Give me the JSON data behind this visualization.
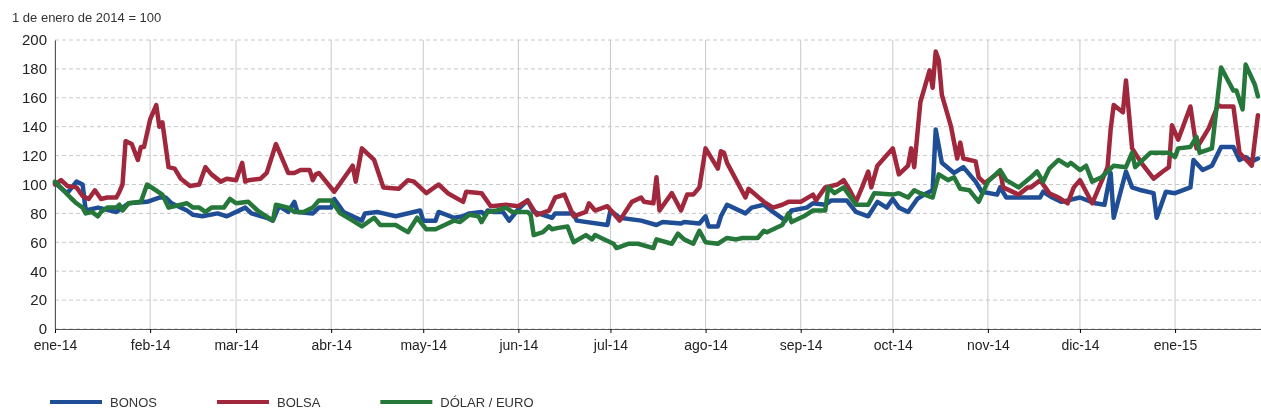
{
  "chart_data": {
    "type": "line",
    "ylabel": "1 de enero de 2014 = 100",
    "xlim": [
      "2014-01-01",
      "2015-01-29"
    ],
    "xticks": [
      {
        "value": "2014-01-01",
        "label": "ene-14"
      },
      {
        "value": "2014-02-01",
        "label": "feb-14"
      },
      {
        "value": "2014-03-01",
        "label": "mar-14"
      },
      {
        "value": "2014-04-01",
        "label": "abr-14"
      },
      {
        "value": "2014-05-01",
        "label": "may-14"
      },
      {
        "value": "2014-06-01",
        "label": "jun-14"
      },
      {
        "value": "2014-07-01",
        "label": "jul-14"
      },
      {
        "value": "2014-08-01",
        "label": "ago-14"
      },
      {
        "value": "2014-09-01",
        "label": "sep-14"
      },
      {
        "value": "2014-10-01",
        "label": "oct-14"
      },
      {
        "value": "2014-11-01",
        "label": "nov-14"
      },
      {
        "value": "2014-12-01",
        "label": "dic-14"
      },
      {
        "value": "2015-01-01",
        "label": "ene-15"
      }
    ],
    "ylim": [
      0,
      200
    ],
    "yticks": [
      0,
      20,
      40,
      60,
      80,
      100,
      120,
      140,
      160,
      180,
      200
    ],
    "grid": true,
    "legend": "bottom",
    "line_style": "solid",
    "series": [
      {
        "name": "BONOS",
        "color": "#1f4e96",
        "x": [
          "2014-01-01",
          "2014-01-05",
          "2014-01-08",
          "2014-01-10",
          "2014-01-11",
          "2014-01-15",
          "2014-01-21",
          "2014-01-25",
          "2014-01-31",
          "2014-02-04",
          "2014-02-06",
          "2014-02-08",
          "2014-02-13",
          "2014-02-15",
          "2014-02-18",
          "2014-02-23",
          "2014-02-26",
          "2014-03-04",
          "2014-03-06",
          "2014-03-11",
          "2014-03-13",
          "2014-03-15",
          "2014-03-18",
          "2014-03-20",
          "2014-03-21",
          "2014-03-26",
          "2014-03-28",
          "2014-04-01",
          "2014-04-02",
          "2014-04-04",
          "2014-04-05",
          "2014-04-11",
          "2014-04-12",
          "2014-04-16",
          "2014-04-18",
          "2014-04-22",
          "2014-04-30",
          "2014-05-01",
          "2014-05-05",
          "2014-05-06",
          "2014-05-11",
          "2014-05-14",
          "2014-05-16",
          "2014-05-20",
          "2014-05-21",
          "2014-05-22",
          "2014-05-24",
          "2014-05-27",
          "2014-05-29",
          "2014-06-01",
          "2014-06-04",
          "2014-06-06",
          "2014-06-12",
          "2014-06-13",
          "2014-06-19",
          "2014-06-20",
          "2014-06-30",
          "2014-07-01",
          "2014-07-04",
          "2014-07-11",
          "2014-07-16",
          "2014-07-18",
          "2014-07-24",
          "2014-07-25",
          "2014-07-30",
          "2014-08-01",
          "2014-08-02",
          "2014-08-05",
          "2014-08-06",
          "2014-08-08",
          "2014-08-14",
          "2014-08-16",
          "2014-08-20",
          "2014-08-23",
          "2014-08-27",
          "2014-08-29",
          "2014-09-03",
          "2014-09-05",
          "2014-09-09",
          "2014-09-11",
          "2014-09-16",
          "2014-09-19",
          "2014-09-23",
          "2014-09-26",
          "2014-09-29",
          "2014-10-01",
          "2014-10-03",
          "2014-10-06",
          "2014-10-09",
          "2014-10-12",
          "2014-10-14",
          "2014-10-15",
          "2014-10-17",
          "2014-10-21",
          "2014-10-24",
          "2014-10-28",
          "2014-10-30",
          "2014-11-04",
          "2014-11-05",
          "2014-11-07",
          "2014-11-18",
          "2014-11-19",
          "2014-11-22",
          "2014-11-25",
          "2014-12-01",
          "2014-12-06",
          "2014-12-09",
          "2014-12-11",
          "2014-12-12",
          "2014-12-16",
          "2014-12-18",
          "2014-12-21",
          "2014-12-25",
          "2014-12-26",
          "2014-12-29",
          "2015-01-01",
          "2015-01-06",
          "2015-01-07",
          "2015-01-10",
          "2015-01-13",
          "2015-01-16",
          "2015-01-20",
          "2015-01-22",
          "2015-01-24",
          "2015-01-26",
          "2015-01-28"
        ],
        "values": [
          101,
          94,
          102,
          100,
          82,
          84,
          81,
          87,
          88,
          91,
          91,
          87,
          82,
          79,
          78,
          80,
          78,
          84,
          80,
          77,
          75,
          85,
          81,
          88,
          81,
          80,
          84,
          84,
          90,
          84,
          81,
          75,
          80,
          81,
          80,
          78,
          82,
          75,
          75,
          81,
          77,
          78,
          80,
          81,
          79,
          82,
          81,
          81,
          75,
          83,
          89,
          81,
          77,
          80,
          80,
          75,
          72,
          82,
          77,
          75,
          72,
          74,
          73,
          74,
          73,
          78,
          71,
          71,
          78,
          86,
          80,
          84,
          86,
          81,
          75,
          82,
          84,
          87,
          86,
          89,
          89,
          81,
          78,
          88,
          84,
          90,
          84,
          81,
          90,
          94,
          96,
          138,
          115,
          108,
          112,
          102,
          95,
          93,
          98,
          91,
          91,
          95,
          91,
          88,
          91,
          87,
          86,
          108,
          77,
          109,
          98,
          96,
          94,
          77,
          95,
          94,
          98,
          117,
          110,
          113,
          126,
          126,
          117,
          119,
          116,
          118
        ]
      },
      {
        "name": "BOLSA",
        "color": "#a1283c",
        "x": [
          "2014-01-01",
          "2014-01-03",
          "2014-01-05",
          "2014-01-08",
          "2014-01-10",
          "2014-01-12",
          "2014-01-14",
          "2014-01-16",
          "2014-01-18",
          "2014-01-21",
          "2014-01-22",
          "2014-01-23",
          "2014-01-24",
          "2014-01-26",
          "2014-01-28",
          "2014-01-29",
          "2014-01-30",
          "2014-02-01",
          "2014-02-03",
          "2014-02-04",
          "2014-02-05",
          "2014-02-07",
          "2014-02-09",
          "2014-02-11",
          "2014-02-14",
          "2014-02-17",
          "2014-02-19",
          "2014-02-21",
          "2014-02-24",
          "2014-02-26",
          "2014-03-01",
          "2014-03-03",
          "2014-03-04",
          "2014-03-05",
          "2014-03-09",
          "2014-03-11",
          "2014-03-14",
          "2014-03-16",
          "2014-03-18",
          "2014-03-20",
          "2014-03-22",
          "2014-03-25",
          "2014-03-26",
          "2014-03-27",
          "2014-03-28",
          "2014-04-02",
          "2014-04-08",
          "2014-04-09",
          "2014-04-11",
          "2014-04-15",
          "2014-04-18",
          "2014-04-23",
          "2014-04-26",
          "2014-04-28",
          "2014-05-02",
          "2014-05-06",
          "2014-05-09",
          "2014-05-14",
          "2014-05-15",
          "2014-05-20",
          "2014-05-23",
          "2014-05-28",
          "2014-06-01",
          "2014-06-04",
          "2014-06-07",
          "2014-06-11",
          "2014-06-13",
          "2014-06-16",
          "2014-06-19",
          "2014-06-23",
          "2014-06-24",
          "2014-06-26",
          "2014-06-30",
          "2014-07-04",
          "2014-07-08",
          "2014-07-11",
          "2014-07-12",
          "2014-07-15",
          "2014-07-16",
          "2014-07-17",
          "2014-07-21",
          "2014-07-24",
          "2014-07-26",
          "2014-07-28",
          "2014-07-30",
          "2014-08-01",
          "2014-08-05",
          "2014-08-06",
          "2014-08-07",
          "2014-08-08",
          "2014-08-11",
          "2014-08-14",
          "2014-08-15",
          "2014-08-20",
          "2014-08-23",
          "2014-08-26",
          "2014-08-28",
          "2014-09-01",
          "2014-09-05",
          "2014-09-06",
          "2014-09-09",
          "2014-09-13",
          "2014-09-15",
          "2014-09-17",
          "2014-09-19",
          "2014-09-21",
          "2014-09-23",
          "2014-09-24",
          "2014-09-26",
          "2014-10-01",
          "2014-10-03",
          "2014-10-06",
          "2014-10-07",
          "2014-10-08",
          "2014-10-10",
          "2014-10-13",
          "2014-10-14",
          "2014-10-15",
          "2014-10-16",
          "2014-10-17",
          "2014-10-20",
          "2014-10-22",
          "2014-10-23",
          "2014-10-24",
          "2014-10-28",
          "2014-10-29",
          "2014-10-31",
          "2014-11-05",
          "2014-11-06",
          "2014-11-11",
          "2014-11-14",
          "2014-11-15",
          "2014-11-18",
          "2014-11-21",
          "2014-11-24",
          "2014-11-27",
          "2014-11-29",
          "2014-12-01",
          "2014-12-05",
          "2014-12-10",
          "2014-12-11",
          "2014-12-12",
          "2014-12-15",
          "2014-12-16",
          "2014-12-18",
          "2014-12-21",
          "2014-12-25",
          "2014-12-28",
          "2014-12-30",
          "2014-12-31",
          "2015-01-02",
          "2015-01-06",
          "2015-01-08",
          "2015-01-12",
          "2015-01-15",
          "2015-01-16",
          "2015-01-20",
          "2015-01-22",
          "2015-01-26",
          "2015-01-28"
        ],
        "values": [
          100,
          103,
          99,
          98,
          92,
          90,
          96,
          90,
          91,
          91,
          95,
          100,
          130,
          128,
          117,
          126,
          126,
          145,
          155,
          140,
          143,
          112,
          111,
          104,
          99,
          100,
          112,
          107,
          102,
          104,
          103,
          115,
          102,
          103,
          104,
          108,
          128,
          118,
          108,
          108,
          110,
          110,
          103,
          107,
          108,
          95,
          113,
          102,
          125,
          117,
          98,
          97,
          103,
          102,
          94,
          100,
          94,
          88,
          95,
          94,
          85,
          86,
          85,
          89,
          79,
          82,
          91,
          93,
          78,
          81,
          87,
          82,
          85,
          75,
          88,
          91,
          88,
          87,
          105,
          82,
          94,
          82,
          93,
          93,
          98,
          125,
          111,
          123,
          122,
          115,
          103,
          91,
          97,
          88,
          84,
          86,
          88,
          88,
          93,
          89,
          98,
          100,
          103,
          96,
          88,
          98,
          109,
          98,
          113,
          125,
          107,
          113,
          125,
          112,
          157,
          179,
          167,
          192,
          186,
          162,
          140,
          118,
          129,
          118,
          116,
          105,
          101,
          109,
          98,
          93,
          98,
          98,
          103,
          94,
          91,
          87,
          98,
          103,
          87,
          112,
          138,
          155,
          150,
          172,
          125,
          115,
          104,
          109,
          112,
          141,
          131,
          154,
          125,
          139,
          155,
          154,
          154,
          122,
          113,
          148
        ]
      },
      {
        "name": "DÓLAR / EURO",
        "color": "#25773a",
        "x": [
          "2014-01-01",
          "2014-01-06",
          "2014-01-08",
          "2014-01-10",
          "2014-01-11",
          "2014-01-13",
          "2014-01-15",
          "2014-01-16",
          "2014-01-18",
          "2014-01-21",
          "2014-01-22",
          "2014-01-23",
          "2014-01-25",
          "2014-01-29",
          "2014-01-31",
          "2014-02-05",
          "2014-02-07",
          "2014-02-13",
          "2014-02-15",
          "2014-02-17",
          "2014-02-19",
          "2014-02-21",
          "2014-02-25",
          "2014-02-27",
          "2014-03-01",
          "2014-03-05",
          "2014-03-08",
          "2014-03-13",
          "2014-03-14",
          "2014-03-18",
          "2014-03-20",
          "2014-03-23",
          "2014-03-26",
          "2014-03-28",
          "2014-04-01",
          "2014-04-04",
          "2014-04-08",
          "2014-04-11",
          "2014-04-15",
          "2014-04-17",
          "2014-04-22",
          "2014-04-26",
          "2014-04-29",
          "2014-05-02",
          "2014-05-05",
          "2014-05-09",
          "2014-05-11",
          "2014-05-13",
          "2014-05-16",
          "2014-05-19",
          "2014-05-20",
          "2014-05-22",
          "2014-05-25",
          "2014-05-28",
          "2014-05-30",
          "2014-06-04",
          "2014-06-05",
          "2014-06-06",
          "2014-06-09",
          "2014-06-11",
          "2014-06-12",
          "2014-06-14",
          "2014-06-17",
          "2014-06-19",
          "2014-06-23",
          "2014-06-25",
          "2014-06-26",
          "2014-06-28",
          "2014-07-02",
          "2014-07-03",
          "2014-07-07",
          "2014-07-10",
          "2014-07-15",
          "2014-07-16",
          "2014-07-21",
          "2014-07-23",
          "2014-07-25",
          "2014-07-28",
          "2014-07-30",
          "2014-08-01",
          "2014-08-05",
          "2014-08-08",
          "2014-08-11",
          "2014-08-13",
          "2014-08-18",
          "2014-08-20",
          "2014-08-21",
          "2014-08-22",
          "2014-08-26",
          "2014-08-28",
          "2014-08-29",
          "2014-09-02",
          "2014-09-05",
          "2014-09-09",
          "2014-09-10",
          "2014-09-12",
          "2014-09-15",
          "2014-09-19",
          "2014-09-23",
          "2014-09-25",
          "2014-10-01",
          "2014-10-03",
          "2014-10-06",
          "2014-10-08",
          "2014-10-10",
          "2014-10-14",
          "2014-10-16",
          "2014-10-19",
          "2014-10-21",
          "2014-10-23",
          "2014-10-26",
          "2014-10-29",
          "2014-11-01",
          "2014-11-05",
          "2014-11-07",
          "2014-11-11",
          "2014-11-15",
          "2014-11-17",
          "2014-11-19",
          "2014-11-21",
          "2014-11-24",
          "2014-11-27",
          "2014-11-28",
          "2014-12-01",
          "2014-12-03",
          "2014-12-05",
          "2014-12-08",
          "2014-12-12",
          "2014-12-16",
          "2014-12-18",
          "2014-12-19",
          "2014-12-24",
          "2014-12-27",
          "2014-12-30",
          "2015-01-01",
          "2015-01-02",
          "2015-01-06",
          "2015-01-08",
          "2015-01-09",
          "2015-01-13",
          "2015-01-16",
          "2015-01-20",
          "2015-01-21",
          "2015-01-23",
          "2015-01-24",
          "2015-01-27",
          "2015-01-28"
        ],
        "values": [
          102,
          91,
          87,
          84,
          80,
          81,
          78,
          81,
          84,
          84,
          86,
          82,
          87,
          88,
          100,
          93,
          84,
          87,
          84,
          84,
          81,
          84,
          84,
          90,
          87,
          88,
          82,
          75,
          86,
          84,
          81,
          81,
          84,
          89,
          89,
          80,
          75,
          71,
          77,
          72,
          72,
          67,
          77,
          69,
          69,
          73,
          75,
          74,
          79,
          78,
          74,
          81,
          82,
          84,
          81,
          81,
          79,
          65,
          67,
          71,
          69,
          70,
          71,
          60,
          65,
          62,
          65,
          63,
          59,
          56,
          59,
          59,
          56,
          62,
          59,
          66,
          62,
          59,
          68,
          60,
          59,
          63,
          62,
          63,
          63,
          68,
          67,
          68,
          72,
          80,
          74,
          78,
          82,
          82,
          98,
          94,
          98,
          86,
          86,
          94,
          93,
          94,
          91,
          96,
          94,
          91,
          107,
          103,
          105,
          97,
          96,
          88,
          102,
          110,
          103,
          98,
          105,
          109,
          102,
          111,
          117,
          113,
          115,
          110,
          113,
          102,
          105,
          113,
          112,
          122,
          112,
          122,
          122,
          122,
          119,
          125,
          126,
          133,
          122,
          125,
          181,
          165,
          165,
          152,
          183,
          169,
          161
        ]
      }
    ]
  }
}
